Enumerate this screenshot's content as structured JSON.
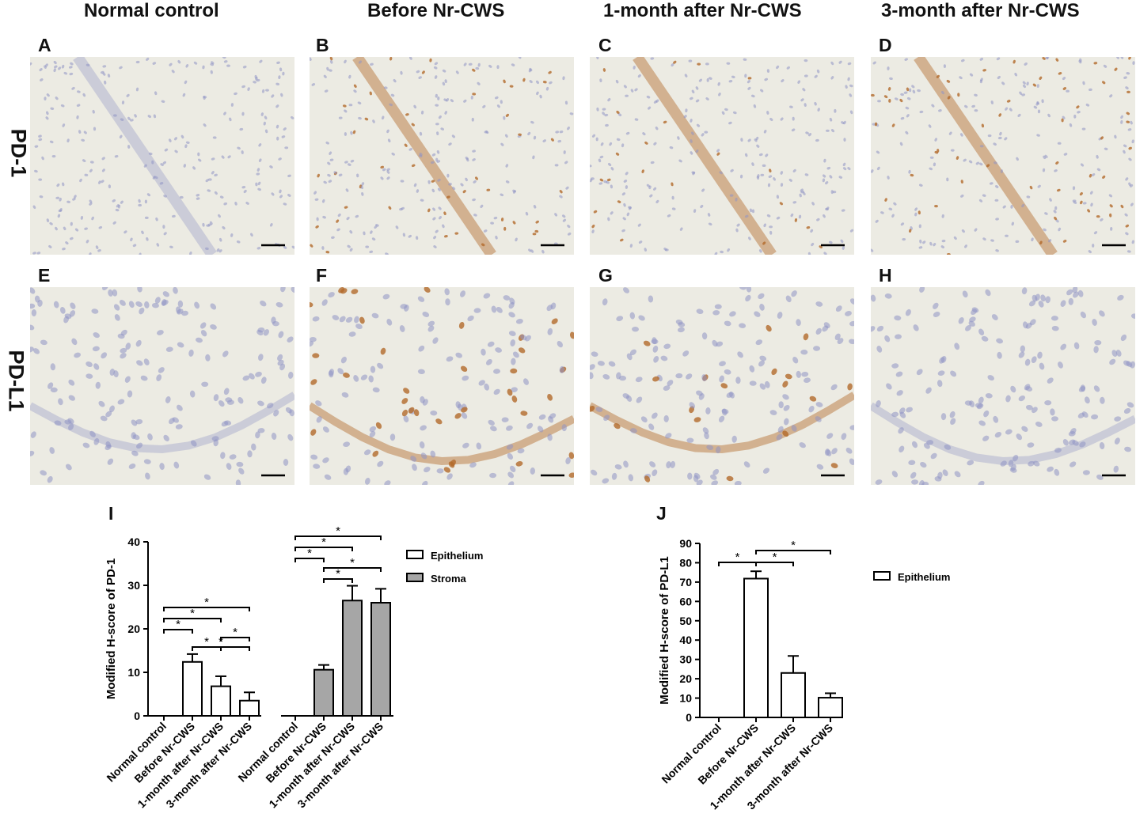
{
  "columns": [
    "Normal control",
    "Before Nr-CWS",
    "1-month after Nr-CWS",
    "3-month after Nr-CWS"
  ],
  "rows": [
    "PD-1",
    "PD-L1"
  ],
  "panel_letters": [
    "A",
    "B",
    "C",
    "D",
    "E",
    "F",
    "G",
    "H",
    "I",
    "J"
  ],
  "micrographs": [
    {
      "letter": "A",
      "stain": "PD-1",
      "condition": "Normal control",
      "brown_level": 0.0,
      "magnification": "low"
    },
    {
      "letter": "B",
      "stain": "PD-1",
      "condition": "Before Nr-CWS",
      "brown_level": 0.6,
      "magnification": "low"
    },
    {
      "letter": "C",
      "stain": "PD-1",
      "condition": "1-month after Nr-CWS",
      "brown_level": 0.35,
      "magnification": "low"
    },
    {
      "letter": "D",
      "stain": "PD-1",
      "condition": "3-month after Nr-CWS",
      "brown_level": 0.45,
      "magnification": "low"
    },
    {
      "letter": "E",
      "stain": "PD-L1",
      "condition": "Normal control",
      "brown_level": 0.0,
      "magnification": "high"
    },
    {
      "letter": "F",
      "stain": "PD-L1",
      "condition": "Before Nr-CWS",
      "brown_level": 0.7,
      "magnification": "high"
    },
    {
      "letter": "G",
      "stain": "PD-L1",
      "condition": "1-month after Nr-CWS",
      "brown_level": 0.35,
      "magnification": "high"
    },
    {
      "letter": "H",
      "stain": "PD-L1",
      "condition": "3-month after Nr-CWS",
      "brown_level": 0.05,
      "magnification": "high"
    }
  ],
  "colors": {
    "epithelium_fill": "#ffffff",
    "stroma_fill": "#a6a6a6",
    "tissue_bg": "#ecebe3",
    "nuclei": "#8f93c4",
    "brown": "#b36a2a"
  },
  "chart_data": [
    {
      "type": "bar",
      "panel": "I",
      "ylabel": "Modified H-score of PD-1",
      "ylim": [
        0,
        40
      ],
      "yticks": [
        0,
        10,
        20,
        30,
        40
      ],
      "categories": [
        "Normal control",
        "Before Nr-CWS",
        "1-month after Nr-CWS",
        "3-month after Nr-CWS"
      ],
      "series": [
        {
          "name": "Epithelium",
          "values": [
            0,
            12.4,
            6.8,
            3.5
          ],
          "errors": [
            0,
            1.8,
            2.3,
            1.9
          ]
        },
        {
          "name": "Stroma",
          "values": [
            0,
            10.6,
            26.5,
            26.0
          ],
          "errors": [
            0,
            1.1,
            3.4,
            3.2
          ]
        }
      ],
      "significance": [
        {
          "series": "Epithelium",
          "from": 0,
          "to": 1,
          "label": "*"
        },
        {
          "series": "Epithelium",
          "from": 0,
          "to": 2,
          "label": "*"
        },
        {
          "series": "Epithelium",
          "from": 0,
          "to": 3,
          "label": "*"
        },
        {
          "series": "Epithelium",
          "from": 1,
          "to": 2,
          "label": "*"
        },
        {
          "series": "Epithelium",
          "from": 1,
          "to": 3,
          "label": "*"
        },
        {
          "series": "Epithelium",
          "from": 2,
          "to": 3,
          "label": "*"
        },
        {
          "series": "Stroma",
          "from": 0,
          "to": 1,
          "label": "*"
        },
        {
          "series": "Stroma",
          "from": 0,
          "to": 2,
          "label": "*"
        },
        {
          "series": "Stroma",
          "from": 0,
          "to": 3,
          "label": "*"
        },
        {
          "series": "Stroma",
          "from": 1,
          "to": 2,
          "label": "*"
        },
        {
          "series": "Stroma",
          "from": 1,
          "to": 3,
          "label": "*"
        }
      ],
      "legend_position": "right"
    },
    {
      "type": "bar",
      "panel": "J",
      "ylabel": "Modified H-score of PD-L1",
      "ylim": [
        0,
        90
      ],
      "yticks": [
        0,
        10,
        20,
        30,
        40,
        50,
        60,
        70,
        80,
        90
      ],
      "categories": [
        "Normal control",
        "Before Nr-CWS",
        "1-month after Nr-CWS",
        "3-month after Nr-CWS"
      ],
      "series": [
        {
          "name": "Epithelium",
          "values": [
            0,
            71.8,
            23.0,
            10.2
          ],
          "errors": [
            0,
            3.8,
            8.8,
            2.3
          ]
        }
      ],
      "significance": [
        {
          "from": 0,
          "to": 1,
          "label": "*"
        },
        {
          "from": 1,
          "to": 2,
          "label": "*"
        },
        {
          "from": 1,
          "to": 3,
          "label": "*"
        }
      ],
      "legend_position": "right"
    }
  ]
}
